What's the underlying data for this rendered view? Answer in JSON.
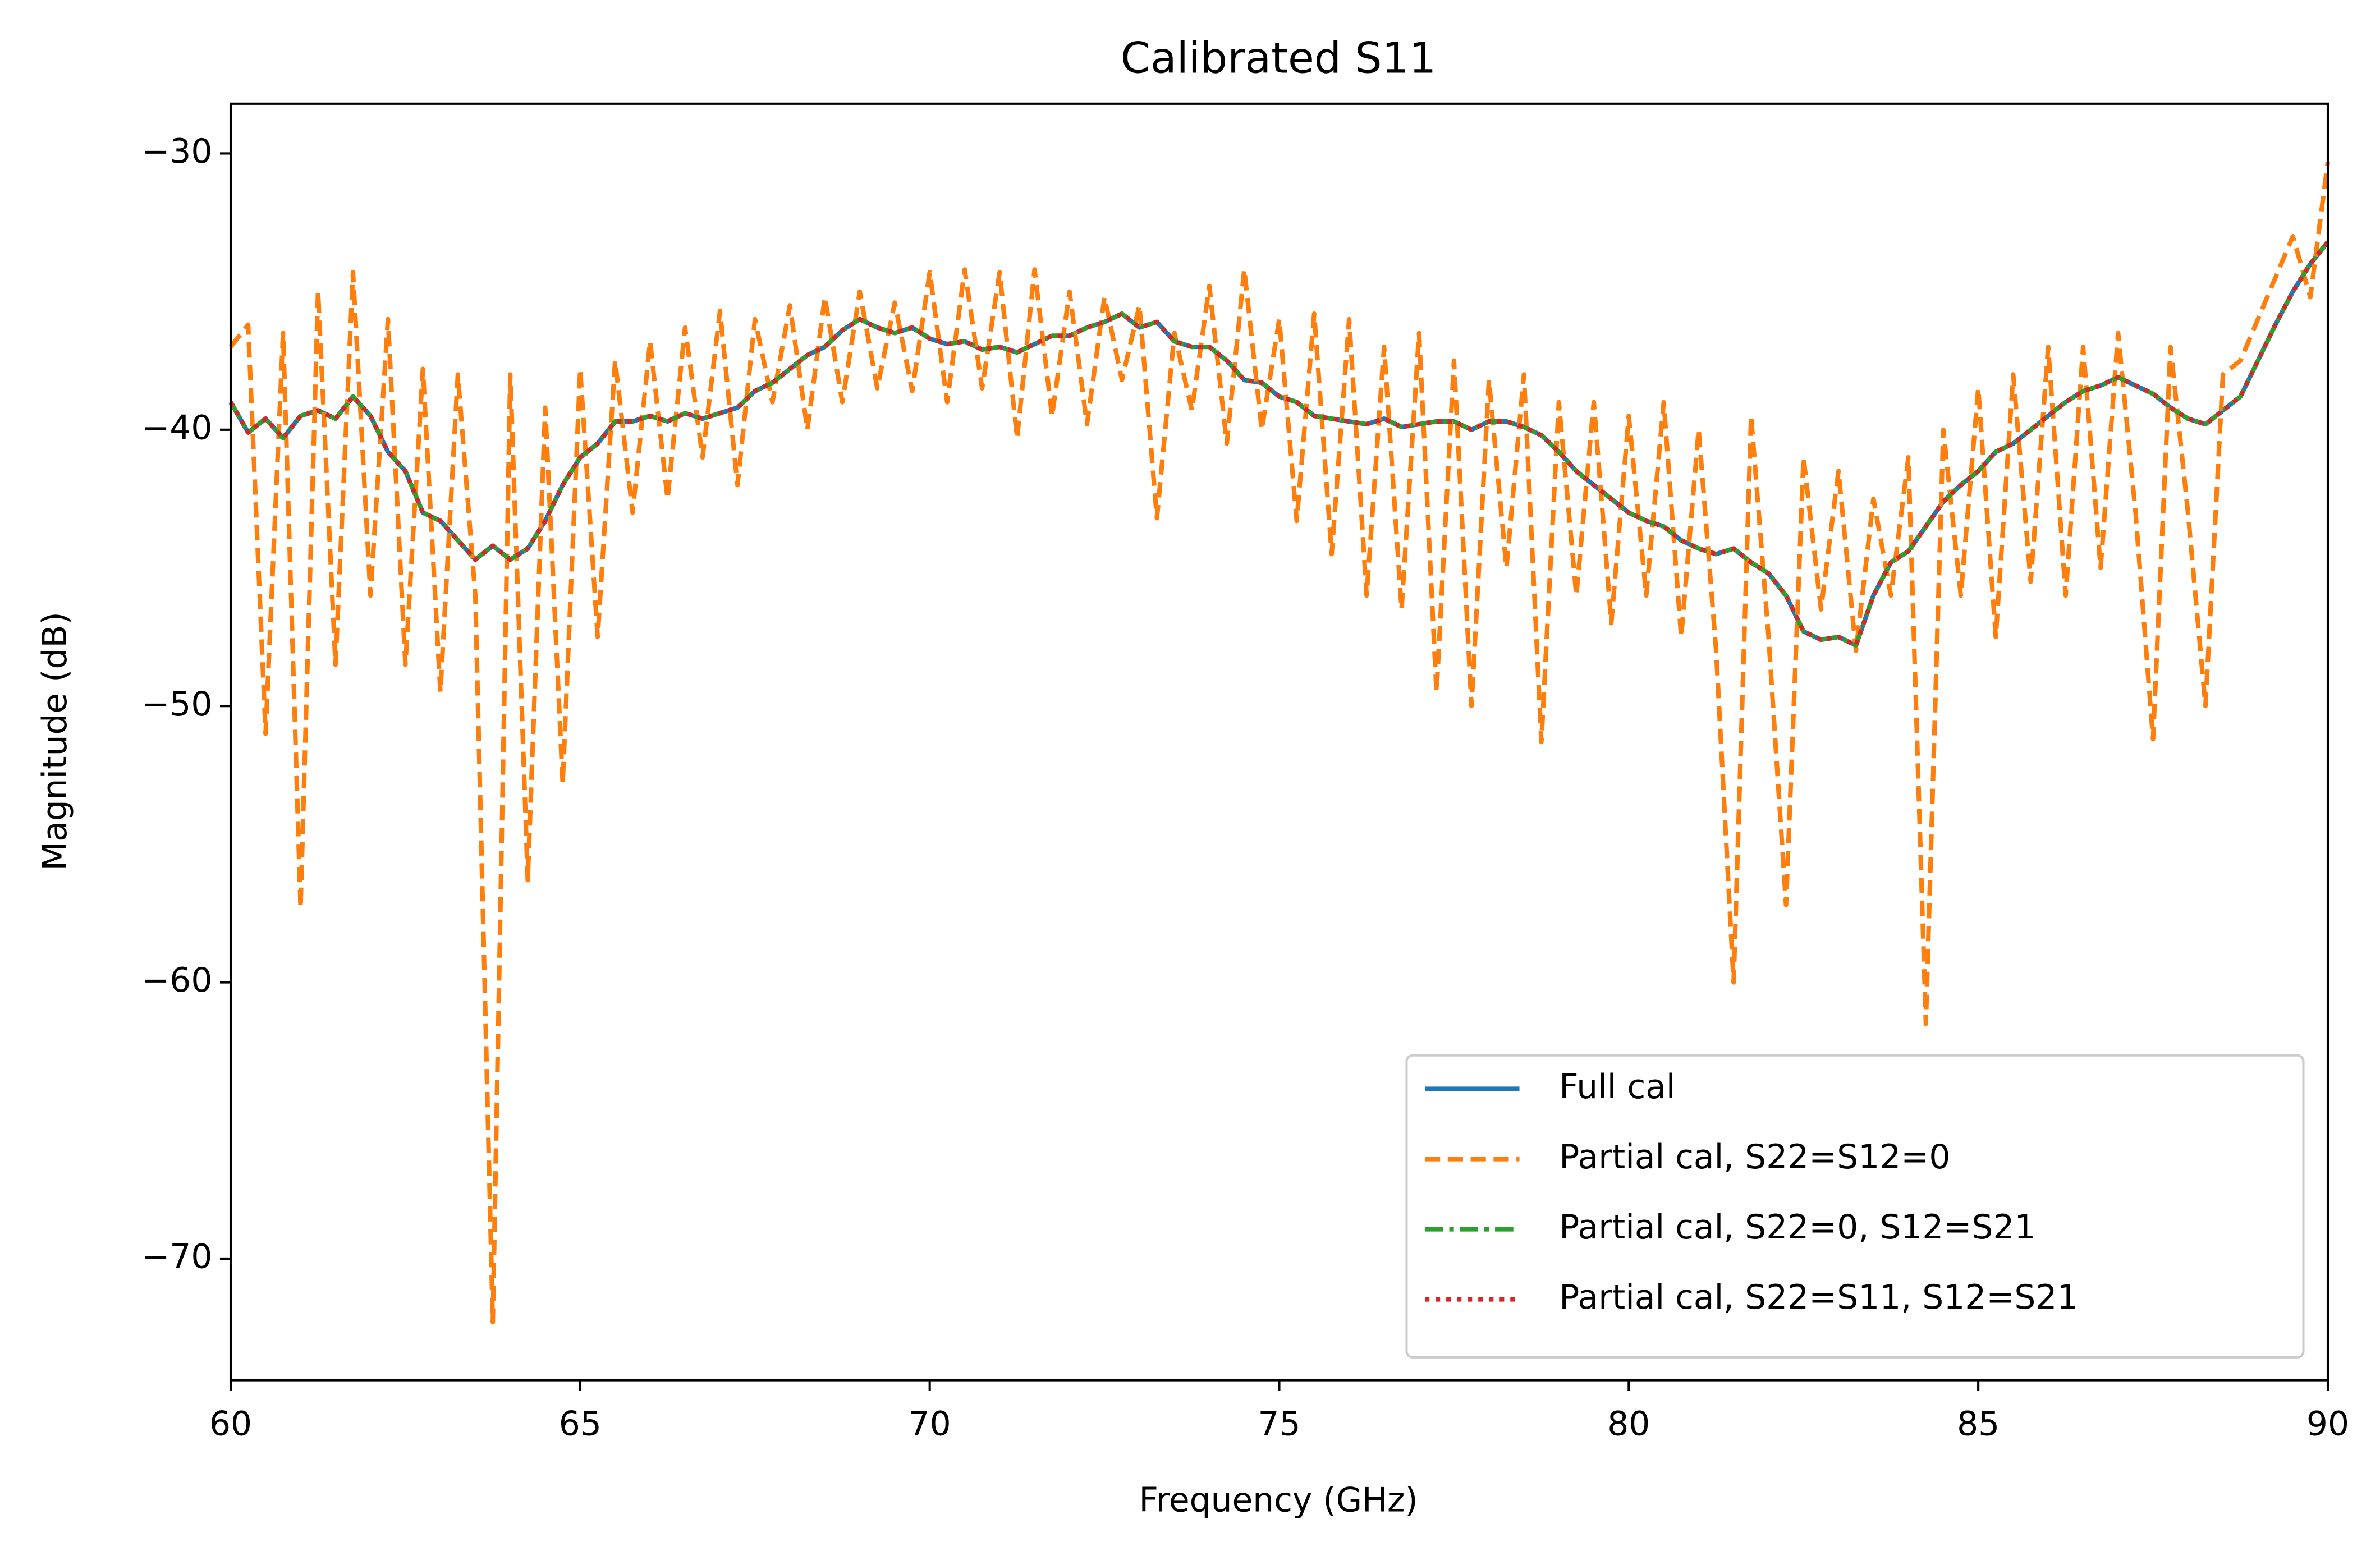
{
  "chart_data": {
    "type": "line",
    "title": "Calibrated S11",
    "x_label": "Frequency (GHz)",
    "y_label": "Magnitude (dB)",
    "xlim": [
      60,
      90
    ],
    "ylim": [
      -74.4,
      -28.2
    ],
    "xticks": [
      60,
      65,
      70,
      75,
      80,
      85,
      90
    ],
    "yticks": [
      {
        "value": -70,
        "label": "−70"
      },
      {
        "value": -60,
        "label": "−60"
      },
      {
        "value": -50,
        "label": "−50"
      },
      {
        "value": -40,
        "label": "−40"
      },
      {
        "value": -30,
        "label": "−30"
      }
    ],
    "legend": "lower right",
    "x": [
      60,
      60.25,
      60.5,
      60.75,
      61,
      61.25,
      61.5,
      61.75,
      62,
      62.25,
      62.5,
      62.75,
      63,
      63.25,
      63.5,
      63.75,
      64,
      64.25,
      64.5,
      64.75,
      65,
      65.25,
      65.5,
      65.75,
      66,
      66.25,
      66.5,
      66.75,
      67,
      67.25,
      67.5,
      67.75,
      68,
      68.25,
      68.5,
      68.75,
      69,
      69.25,
      69.5,
      69.75,
      70,
      70.25,
      70.5,
      70.75,
      71,
      71.25,
      71.5,
      71.75,
      72,
      72.25,
      72.5,
      72.75,
      73,
      73.25,
      73.5,
      73.75,
      74,
      74.25,
      74.5,
      74.75,
      75,
      75.25,
      75.5,
      75.75,
      76,
      76.25,
      76.5,
      76.75,
      77,
      77.25,
      77.5,
      77.75,
      78,
      78.25,
      78.5,
      78.75,
      79,
      79.25,
      79.5,
      79.75,
      80,
      80.25,
      80.5,
      80.75,
      81,
      81.25,
      81.5,
      81.75,
      82,
      82.25,
      82.5,
      82.75,
      83,
      83.25,
      83.5,
      83.75,
      84,
      84.25,
      84.5,
      84.75,
      85,
      85.25,
      85.5,
      85.75,
      86,
      86.25,
      86.5,
      86.75,
      87,
      87.25,
      87.5,
      87.75,
      88,
      88.25,
      88.5,
      88.75,
      89,
      89.25,
      89.5,
      89.75,
      90
    ],
    "series": [
      {
        "name": "Full cal",
        "color": "#1f77b4",
        "linestyle": "solid",
        "values": [
          -39,
          -40.1,
          -39.6,
          -40.3,
          -39.5,
          -39.3,
          -39.6,
          -38.8,
          -39.5,
          -40.8,
          -41.5,
          -43,
          -43.3,
          -44,
          -44.7,
          -44.2,
          -44.7,
          -44.3,
          -43.3,
          -42,
          -41,
          -40.5,
          -39.7,
          -39.7,
          -39.5,
          -39.7,
          -39.4,
          -39.6,
          -39.4,
          -39.2,
          -38.6,
          -38.3,
          -37.8,
          -37.3,
          -37,
          -36.4,
          -36,
          -36.3,
          -36.5,
          -36.3,
          -36.7,
          -36.9,
          -36.8,
          -37.1,
          -37,
          -37.2,
          -36.9,
          -36.6,
          -36.6,
          -36.3,
          -36.1,
          -35.8,
          -36.3,
          -36.1,
          -36.8,
          -37,
          -37,
          -37.5,
          -38.2,
          -38.3,
          -38.8,
          -39,
          -39.5,
          -39.6,
          -39.7,
          -39.8,
          -39.6,
          -39.9,
          -39.8,
          -39.7,
          -39.7,
          -40,
          -39.7,
          -39.7,
          -39.9,
          -40.2,
          -40.8,
          -41.5,
          -42,
          -42.5,
          -43,
          -43.3,
          -43.5,
          -44,
          -44.3,
          -44.5,
          -44.3,
          -44.8,
          -45.2,
          -46,
          -47.3,
          -47.6,
          -47.5,
          -47.8,
          -46,
          -44.8,
          -44.4,
          -43.5,
          -42.6,
          -42,
          -41.5,
          -40.8,
          -40.5,
          -40,
          -39.5,
          -39,
          -38.6,
          -38.4,
          -38.1,
          -38.4,
          -38.7,
          -39.2,
          -39.6,
          -39.8,
          -39.3,
          -38.8,
          -37.5,
          -36.2,
          -35,
          -34,
          -33.2
        ]
      },
      {
        "name": "Partial cal, S22=S12=0",
        "color": "#ff7f0e",
        "linestyle": "dashed",
        "values": [
          -37,
          -36.2,
          -51,
          -36.5,
          -57.3,
          -35,
          -48.5,
          -34.3,
          -46,
          -36,
          -48.5,
          -37.8,
          -49.5,
          -38,
          -46,
          -72.3,
          -38,
          -56.3,
          -39.2,
          -52.8,
          -37.8,
          -47.5,
          -37.5,
          -43,
          -36.8,
          -42.5,
          -36.3,
          -41,
          -35.7,
          -42,
          -36,
          -39,
          -35.5,
          -40,
          -35.2,
          -39,
          -35,
          -38.5,
          -35.4,
          -38.6,
          -34.3,
          -39,
          -34.2,
          -38.5,
          -34.3,
          -40.3,
          -34.2,
          -39.5,
          -35,
          -39.8,
          -35.2,
          -38.2,
          -35.5,
          -43.2,
          -36.5,
          -39.3,
          -34.8,
          -40.5,
          -34.2,
          -40,
          -36,
          -43.3,
          -35.8,
          -44.5,
          -36,
          -46,
          -37,
          -46.5,
          -36.5,
          -49.5,
          -37.5,
          -50,
          -38.2,
          -45,
          -38,
          -51.3,
          -39,
          -46,
          -39,
          -47,
          -39.5,
          -46,
          -39,
          -47.5,
          -40,
          -48,
          -60,
          -39.5,
          -47.5,
          -57.2,
          -41,
          -46.5,
          -41.5,
          -48,
          -42.5,
          -46,
          -41,
          -61.5,
          -40,
          -46,
          -38.5,
          -47.5,
          -38,
          -45.5,
          -37,
          -46,
          -37,
          -45,
          -36.5,
          -43,
          -51.2,
          -37,
          -43,
          -50,
          -38,
          -37.5,
          -36,
          -34.5,
          -33,
          -35.2,
          -30.3
        ]
      },
      {
        "name": "Partial cal, S22=0, S12=S21",
        "color": "#2ca02c",
        "linestyle": "dashdot",
        "values": [
          -39,
          -40.1,
          -39.6,
          -40.3,
          -39.5,
          -39.3,
          -39.6,
          -38.8,
          -39.5,
          -40.8,
          -41.5,
          -43,
          -43.3,
          -44,
          -44.7,
          -44.2,
          -44.7,
          -44.3,
          -43.3,
          -42,
          -41,
          -40.5,
          -39.7,
          -39.7,
          -39.5,
          -39.7,
          -39.4,
          -39.6,
          -39.4,
          -39.2,
          -38.6,
          -38.3,
          -37.8,
          -37.3,
          -37,
          -36.4,
          -36,
          -36.3,
          -36.5,
          -36.3,
          -36.7,
          -36.9,
          -36.8,
          -37.1,
          -37,
          -37.2,
          -36.9,
          -36.6,
          -36.6,
          -36.3,
          -36.1,
          -35.8,
          -36.3,
          -36.1,
          -36.8,
          -37,
          -37,
          -37.5,
          -38.2,
          -38.3,
          -38.8,
          -39,
          -39.5,
          -39.6,
          -39.7,
          -39.8,
          -39.6,
          -39.9,
          -39.8,
          -39.7,
          -39.7,
          -40,
          -39.7,
          -39.7,
          -39.9,
          -40.2,
          -40.8,
          -41.5,
          -42,
          -42.5,
          -43,
          -43.3,
          -43.5,
          -44,
          -44.3,
          -44.5,
          -44.3,
          -44.8,
          -45.2,
          -46,
          -47.3,
          -47.6,
          -47.5,
          -47.8,
          -46,
          -44.8,
          -44.4,
          -43.5,
          -42.6,
          -42,
          -41.5,
          -40.8,
          -40.5,
          -40,
          -39.5,
          -39,
          -38.6,
          -38.4,
          -38.1,
          -38.4,
          -38.7,
          -39.2,
          -39.6,
          -39.8,
          -39.3,
          -38.8,
          -37.5,
          -36.2,
          -35,
          -34,
          -33.2
        ]
      },
      {
        "name": "Partial cal, S22=S11, S12=S21",
        "color": "#d62728",
        "linestyle": "dotted",
        "values": [
          -39,
          -40.1,
          -39.6,
          -40.3,
          -39.5,
          -39.3,
          -39.6,
          -38.8,
          -39.5,
          -40.8,
          -41.5,
          -43,
          -43.3,
          -44,
          -44.7,
          -44.2,
          -44.7,
          -44.3,
          -43.3,
          -42,
          -41,
          -40.5,
          -39.7,
          -39.7,
          -39.5,
          -39.7,
          -39.4,
          -39.6,
          -39.4,
          -39.2,
          -38.6,
          -38.3,
          -37.8,
          -37.3,
          -37,
          -36.4,
          -36,
          -36.3,
          -36.5,
          -36.3,
          -36.7,
          -36.9,
          -36.8,
          -37.1,
          -37,
          -37.2,
          -36.9,
          -36.6,
          -36.6,
          -36.3,
          -36.1,
          -35.8,
          -36.3,
          -36.1,
          -36.8,
          -37,
          -37,
          -37.5,
          -38.2,
          -38.3,
          -38.8,
          -39,
          -39.5,
          -39.6,
          -39.7,
          -39.8,
          -39.6,
          -39.9,
          -39.8,
          -39.7,
          -39.7,
          -40,
          -39.7,
          -39.7,
          -39.9,
          -40.2,
          -40.8,
          -41.5,
          -42,
          -42.5,
          -43,
          -43.3,
          -43.5,
          -44,
          -44.3,
          -44.5,
          -44.3,
          -44.8,
          -45.2,
          -46,
          -47.3,
          -47.6,
          -47.5,
          -47.8,
          -46,
          -44.8,
          -44.4,
          -43.5,
          -42.6,
          -42,
          -41.5,
          -40.8,
          -40.5,
          -40,
          -39.5,
          -39,
          -38.6,
          -38.4,
          -38.1,
          -38.4,
          -38.7,
          -39.2,
          -39.6,
          -39.8,
          -39.3,
          -38.8,
          -37.5,
          -36.2,
          -35,
          -34,
          -33.2
        ]
      }
    ]
  }
}
